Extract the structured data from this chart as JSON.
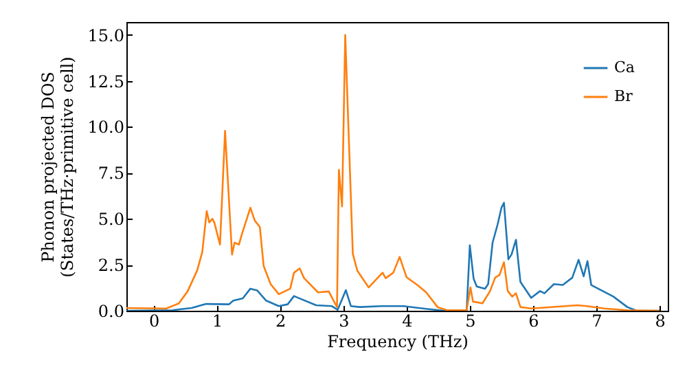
{
  "chart_data": {
    "type": "line",
    "xlabel": "Frequency (THz)",
    "ylabel": "Phonon projected DOS\n(States/THz·primitive cell)",
    "xlim": [
      -0.43,
      8.13
    ],
    "ylim": [
      0,
      15.7
    ],
    "xticks": [
      0,
      1,
      2,
      3,
      4,
      5,
      6,
      7,
      8
    ],
    "yticks": [
      {
        "value": 0,
        "label": "0.0"
      },
      2.5,
      {
        "value": 5,
        "label": "5.0"
      },
      7.5,
      {
        "value": 10,
        "label": "10.0"
      },
      12.5,
      {
        "value": 15,
        "label": "15.0"
      }
    ],
    "legend": "top right",
    "grid": false,
    "series": [
      {
        "name": "Ca",
        "color": "#1f77b4",
        "x": [
          -0.43,
          0.3,
          0.6,
          0.83,
          1.19,
          1.26,
          1.41,
          1.53,
          1.64,
          1.78,
          1.98,
          2.12,
          2.22,
          2.31,
          2.57,
          2.82,
          2.91,
          3.04,
          3.12,
          3.26,
          3.6,
          3.95,
          4.31,
          4.6,
          4.95,
          5.0,
          5.06,
          5.11,
          5.24,
          5.29,
          5.36,
          5.44,
          5.5,
          5.54,
          5.61,
          5.66,
          5.73,
          5.8,
          5.97,
          6.11,
          6.18,
          6.33,
          6.47,
          6.62,
          6.72,
          6.8,
          6.86,
          6.92,
          7.27,
          7.49,
          7.64,
          8.0
        ],
        "values": [
          0,
          0.03,
          0.15,
          0.37,
          0.35,
          0.55,
          0.67,
          1.2,
          1.1,
          0.55,
          0.25,
          0.35,
          0.8,
          0.67,
          0.3,
          0.25,
          0.05,
          1.12,
          0.25,
          0.2,
          0.25,
          0.25,
          0.1,
          0,
          0,
          3.56,
          1.75,
          1.32,
          1.2,
          1.45,
          3.7,
          4.7,
          5.6,
          5.87,
          2.8,
          3.06,
          3.86,
          1.57,
          0.7,
          1.07,
          0.95,
          1.45,
          1.4,
          1.8,
          2.77,
          1.87,
          2.7,
          1.4,
          0.77,
          0.2,
          0,
          0
        ]
      },
      {
        "name": "Br",
        "color": "#ff7f0e",
        "x": [
          -0.43,
          0.2,
          0.4,
          0.54,
          0.69,
          0.77,
          0.84,
          0.88,
          0.93,
          0.96,
          1.05,
          1.13,
          1.24,
          1.28,
          1.35,
          1.39,
          1.53,
          1.6,
          1.68,
          1.74,
          1.85,
          1.98,
          2.16,
          2.22,
          2.31,
          2.38,
          2.6,
          2.77,
          2.86,
          2.9,
          2.93,
          2.98,
          3.03,
          3.15,
          3.22,
          3.4,
          3.62,
          3.67,
          3.79,
          3.89,
          4.0,
          4.17,
          4.31,
          4.49,
          4.64,
          4.95,
          5.01,
          5.05,
          5.2,
          5.32,
          5.4,
          5.47,
          5.54,
          5.6,
          5.67,
          5.73,
          5.8,
          5.97,
          6.7,
          6.85,
          7.13,
          7.49,
          8.0
        ],
        "values": [
          0.15,
          0.12,
          0.4,
          1.07,
          2.2,
          3.2,
          5.42,
          4.8,
          5.0,
          4.8,
          3.6,
          9.78,
          3.06,
          3.7,
          3.6,
          4.1,
          5.6,
          4.9,
          4.55,
          2.44,
          1.45,
          0.9,
          1.2,
          2.07,
          2.3,
          1.77,
          1.0,
          1.05,
          0.45,
          0.2,
          7.66,
          5.67,
          15.0,
          3.1,
          2.19,
          1.27,
          2.07,
          1.77,
          2.07,
          2.93,
          1.82,
          1.4,
          1.0,
          0.2,
          0.03,
          0.03,
          1.27,
          0.5,
          0.4,
          1.07,
          1.8,
          1.95,
          2.64,
          1.07,
          0.77,
          0.95,
          0.2,
          0.12,
          0.3,
          0.25,
          0.12,
          0.03,
          0
        ]
      }
    ]
  }
}
